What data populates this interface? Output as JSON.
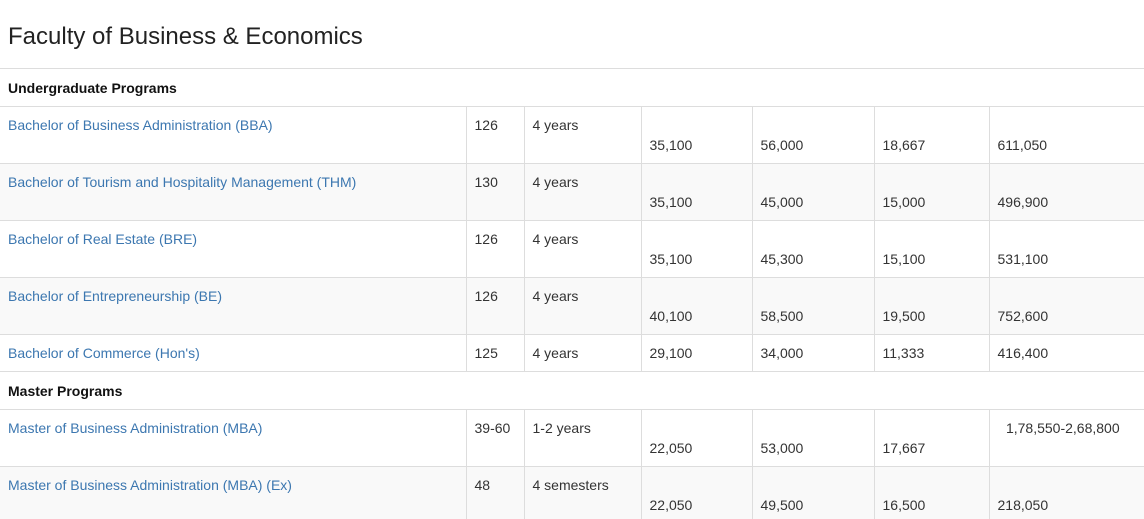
{
  "page": {
    "title": "Faculty of Business & Economics"
  },
  "sections": {
    "undergrad": {
      "heading": "Undergraduate Programs",
      "rows": [
        {
          "name": "Bachelor of Business Administration (BBA)",
          "credits": "126",
          "duration": "4 years",
          "c1": "35,100",
          "c2": "56,000",
          "c3": "18,667",
          "total": "611,050"
        },
        {
          "name": "Bachelor of Tourism and Hospitality Management (THM)",
          "credits": "130",
          "duration": "4 years",
          "c1": "35,100",
          "c2": "45,000",
          "c3": "15,000",
          "total": "496,900"
        },
        {
          "name": "Bachelor of Real Estate (BRE)",
          "credits": "126",
          "duration": "4 years",
          "c1": "35,100",
          "c2": "45,300",
          "c3": "15,100",
          "total": "531,100"
        },
        {
          "name": "Bachelor of Entrepreneurship (BE)",
          "credits": "126",
          "duration": "4 years",
          "c1": "40,100",
          "c2": "58,500",
          "c3": "19,500",
          "total": "752,600"
        },
        {
          "name": "Bachelor of Commerce (Hon's)",
          "credits": "125",
          "duration": "4 years",
          "c1": "29,100",
          "c2": "34,000",
          "c3": "11,333",
          "total": "416,400"
        }
      ]
    },
    "master": {
      "heading": "Master Programs",
      "rows": [
        {
          "name": "Master of Business Administration (MBA)",
          "credits": "39-60",
          "duration": "1-2 years",
          "c1": "22,050",
          "c2": "53,000",
          "c3": "17,667",
          "total": "1,78,550-2,68,800"
        },
        {
          "name": "Master of Business Administration (MBA) (Ex)",
          "credits": "48",
          "duration": "4 semesters",
          "c1": "22,050",
          "c2": "49,500",
          "c3": "16,500",
          "total": "218,050"
        }
      ]
    }
  }
}
